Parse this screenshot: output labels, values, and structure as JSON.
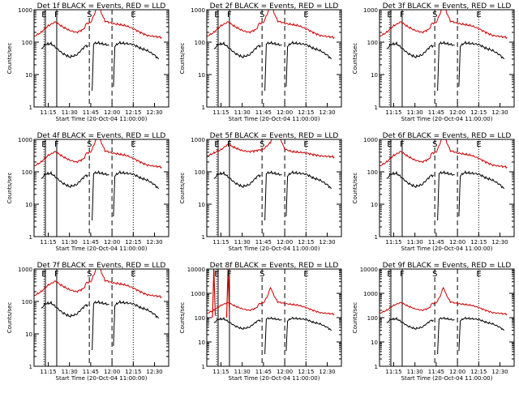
{
  "figure": {
    "background": "#ffffff"
  },
  "chart_data": {
    "type": "line",
    "layout": "3x3 grid",
    "x_range": [
      "11:05",
      "12:40"
    ],
    "x_ticks": [
      "11:15",
      "11:30",
      "11:45",
      "12:00",
      "12:15",
      "12:30"
    ],
    "y_scale": "log",
    "y_range": [
      1,
      1000
    ],
    "ylabel": "Counts/sec",
    "xlabel": "Start Time (20-Oct-04 11:00:00)",
    "series_colors": {
      "events": "#000000",
      "lld": "#cc0000"
    },
    "marker_lines": [
      {
        "time": "11:12",
        "style": "dotted",
        "label": "E"
      },
      {
        "time": "11:13",
        "style": "solid",
        "label": ""
      },
      {
        "time": "11:21",
        "style": "solid",
        "label": "F"
      },
      {
        "time": "11:44",
        "style": "dashed",
        "label": "S"
      },
      {
        "time": "12:00",
        "style": "dashed",
        "label": ""
      },
      {
        "time": "12:15",
        "style": "dotted",
        "label": "E"
      }
    ],
    "panels": [
      {
        "title": "Det 1f BLACK = Events, RED = LLD",
        "ymax": 1000,
        "ymax_label": "1000"
      },
      {
        "title": "Det 2f BLACK = Events, RED = LLD",
        "ymax": 1000,
        "ymax_label": "1000"
      },
      {
        "title": "Det 3f BLACK = Events, RED = LLD",
        "ymax": 1000,
        "ymax_label": "1000"
      },
      {
        "title": "Det 4f BLACK = Events, RED = LLD",
        "ymax": 1000,
        "ymax_label": "1000"
      },
      {
        "title": "Det 5f BLACK = Events, RED = LLD",
        "ymax": 1000,
        "ymax_label": "1000"
      },
      {
        "title": "Det 6f BLACK = Events, RED = LLD",
        "ymax": 1000,
        "ymax_label": "1000"
      },
      {
        "title": "Det 7f BLACK = Events, RED = LLD",
        "ymax": 1000,
        "ymax_label": "1000"
      },
      {
        "title": "Det 8f BLACK = Events, RED = LLD",
        "ymax": 10000,
        "ymax_label": "10000"
      },
      {
        "title": "Det 9f BLACK = Events, RED = LLD",
        "ymax": 10000,
        "ymax_label": "10000"
      }
    ],
    "red_series": {
      "x": [
        "11:05",
        "11:10",
        "11:15",
        "11:20",
        "11:25",
        "11:30",
        "11:35",
        "11:40",
        "11:42",
        "11:45",
        "11:48",
        "11:50",
        "11:52",
        "11:55",
        "11:57",
        "12:00",
        "12:05",
        "12:10",
        "12:15",
        "12:20",
        "12:25",
        "12:30",
        "12:35"
      ],
      "y": [
        150,
        200,
        320,
        420,
        300,
        230,
        200,
        250,
        380,
        400,
        800,
        1800,
        900,
        450,
        420,
        380,
        350,
        320,
        260,
        200,
        160,
        150,
        140
      ]
    },
    "black_series": [
      {
        "x": [
          "11:10",
          "11:13",
          "11:17",
          "11:20",
          "11:25",
          "11:30",
          "11:35",
          "11:38",
          "11:41",
          "11:43"
        ],
        "y": [
          60,
          85,
          90,
          70,
          45,
          35,
          40,
          55,
          75,
          80
        ]
      },
      {
        "x": [
          "11:46",
          "11:47",
          "11:50",
          "11:55",
          "11:58"
        ],
        "y": [
          3,
          90,
          95,
          85,
          80
        ]
      },
      {
        "x": [
          "12:01",
          "12:02",
          "12:05",
          "12:10",
          "12:15",
          "12:20",
          "12:25",
          "12:30",
          "12:33"
        ],
        "y": [
          4,
          75,
          95,
          90,
          85,
          65,
          55,
          40,
          30
        ]
      }
    ],
    "panel5_red_series": {
      "x": [
        "11:05",
        "11:10",
        "11:15",
        "11:20",
        "11:25",
        "11:30",
        "11:35",
        "11:40",
        "11:45",
        "11:50",
        "11:53",
        "11:55",
        "11:58",
        "12:00",
        "12:05",
        "12:10",
        "12:15",
        "12:20",
        "12:25",
        "12:30",
        "12:35"
      ],
      "y": [
        300,
        380,
        480,
        700,
        550,
        450,
        420,
        450,
        500,
        800,
        2500,
        2000,
        800,
        500,
        420,
        400,
        380,
        340,
        310,
        300,
        290
      ]
    },
    "panel8_red_spikes": [
      {
        "x": [
          "11:09",
          "11:10",
          "11:11"
        ],
        "y": [
          100,
          10000,
          120
        ]
      },
      {
        "x": [
          "11:19",
          "11:20",
          "11:21"
        ],
        "y": [
          100,
          10000,
          120
        ]
      }
    ]
  }
}
